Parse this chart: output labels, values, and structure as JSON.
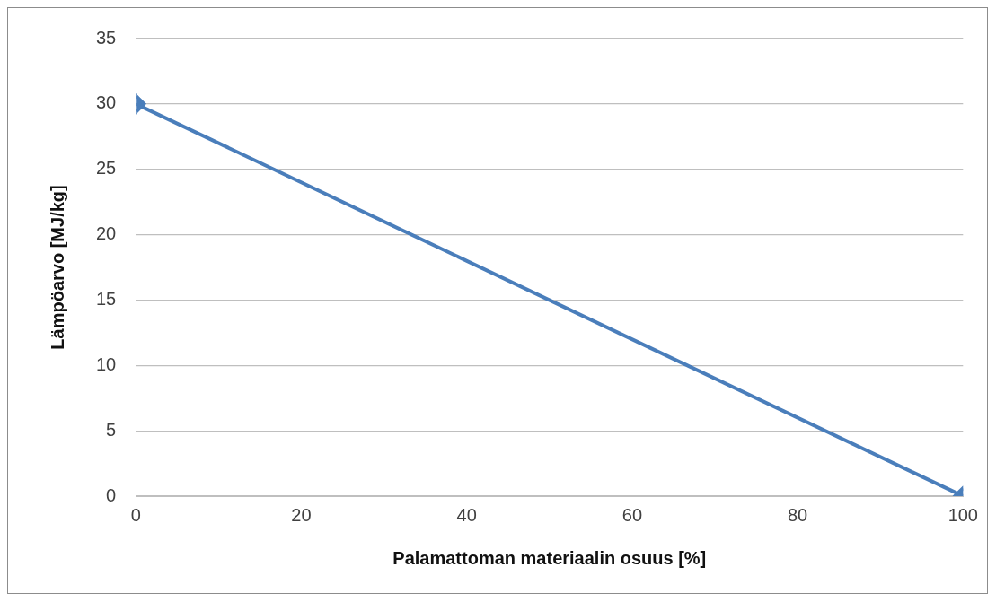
{
  "chart_data": {
    "type": "line",
    "xlabel": "Palamattoman materiaalin osuus [%]",
    "ylabel": "Lämpöarvo [MJ/kg]",
    "x": [
      0,
      100
    ],
    "series": [
      {
        "color": "#4a7ebb",
        "values": [
          30,
          0
        ]
      }
    ],
    "xlim": [
      0,
      100
    ],
    "xticks": [
      0,
      20,
      40,
      60,
      80,
      100
    ],
    "ylim": [
      0,
      35
    ],
    "yticks": [
      0,
      5,
      10,
      15,
      20,
      25,
      30,
      35
    ],
    "grid": "y",
    "legend": false,
    "marker": "diamond",
    "line_style": "solid"
  }
}
